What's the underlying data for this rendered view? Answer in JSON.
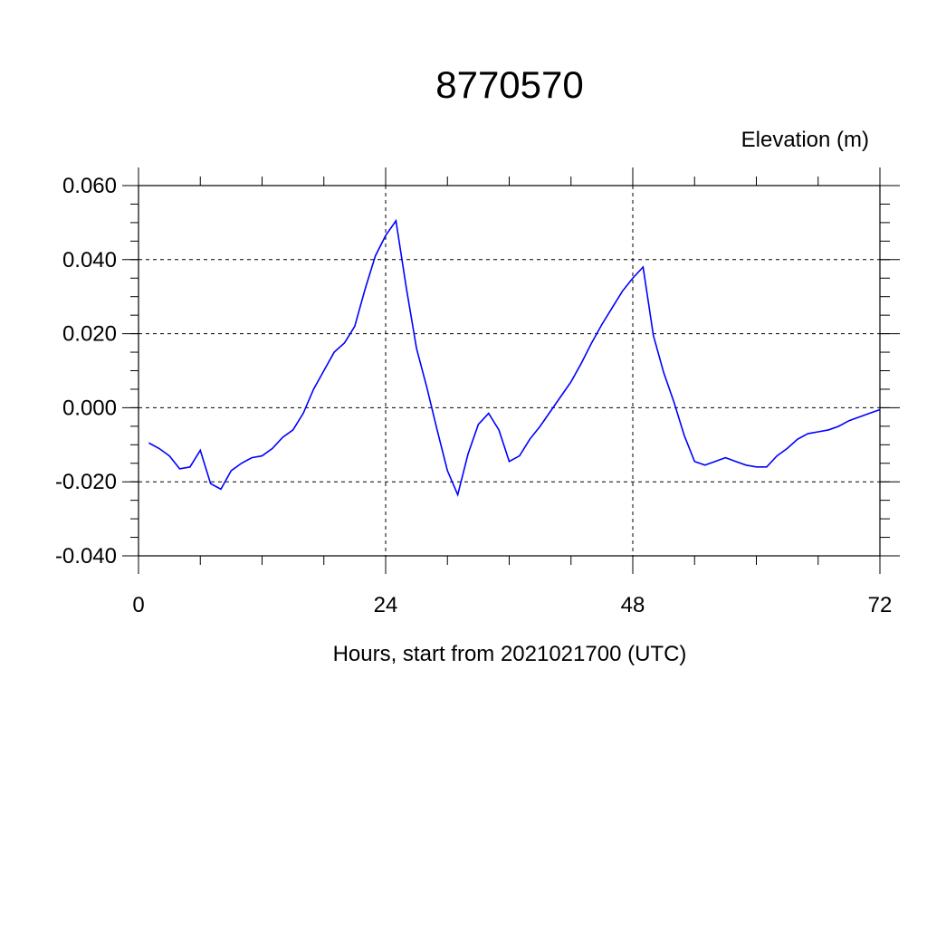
{
  "chart_data": {
    "type": "line",
    "title": "8770570",
    "ylabel": "Elevation (m)",
    "xlabel": "Hours, start from 2021021700 (UTC)",
    "xlim": [
      0,
      72
    ],
    "ylim": [
      -0.04,
      0.06
    ],
    "x_ticks": [
      0,
      24,
      48,
      72
    ],
    "x_tick_labels": [
      "0",
      "24",
      "48",
      "72"
    ],
    "y_ticks": [
      -0.04,
      -0.02,
      0.0,
      0.02,
      0.04,
      0.06
    ],
    "y_tick_labels": [
      "-0.040",
      "-0.020",
      "0.000",
      "0.020",
      "0.040",
      "0.060"
    ],
    "grid": true,
    "colors": {
      "series": "#0000ff",
      "axes": "#000000"
    },
    "series": [
      {
        "x": [
          1,
          2,
          3,
          4,
          5,
          6,
          7,
          8,
          9,
          10,
          11,
          12,
          13,
          14,
          15,
          16,
          17,
          18,
          19,
          20,
          21,
          22,
          23,
          24,
          25,
          26,
          27,
          28,
          29,
          30,
          31,
          32,
          33,
          34,
          35,
          36,
          37,
          38,
          39,
          40,
          41,
          42,
          43,
          44,
          45,
          46,
          47,
          48,
          49,
          50,
          51,
          52,
          53,
          54,
          55,
          56,
          57,
          58,
          59,
          60,
          61,
          62,
          63,
          64,
          65,
          66,
          67,
          68,
          69,
          70,
          71,
          72
        ],
        "values": [
          -0.0095,
          -0.011,
          -0.013,
          -0.0165,
          -0.016,
          -0.0115,
          -0.0205,
          -0.022,
          -0.017,
          -0.015,
          -0.0135,
          -0.013,
          -0.011,
          -0.008,
          -0.006,
          -0.0015,
          0.005,
          0.01,
          0.015,
          0.0175,
          0.022,
          0.032,
          0.041,
          0.0465,
          0.0505,
          0.0325,
          0.016,
          0.0055,
          -0.006,
          -0.017,
          -0.0235,
          -0.0125,
          -0.0045,
          -0.0015,
          -0.006,
          -0.0145,
          -0.013,
          -0.0085,
          -0.005,
          -0.001,
          0.003,
          0.007,
          0.012,
          0.0175,
          0.0225,
          0.027,
          0.0315,
          0.035,
          0.038,
          0.0195,
          0.0095,
          0.0015,
          -0.0075,
          -0.0145,
          -0.0155,
          -0.0145,
          -0.0135,
          -0.0145,
          -0.0155,
          -0.016,
          -0.016,
          -0.013,
          -0.011,
          -0.0085,
          -0.007,
          -0.0065,
          -0.006,
          -0.005,
          -0.0035,
          -0.0025,
          -0.0015,
          -0.0005
        ]
      }
    ]
  }
}
